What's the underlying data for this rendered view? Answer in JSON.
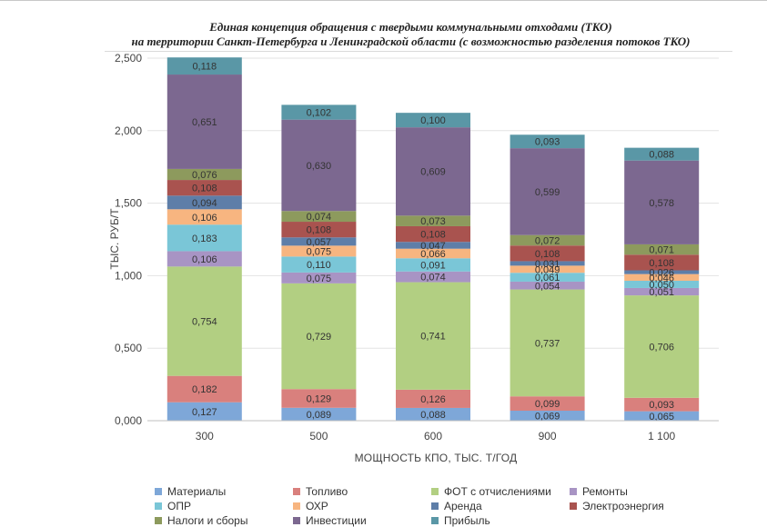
{
  "title_line1": "Единая концепция обращения с твердыми коммунальными отходами (ТКО)",
  "title_line2": "на территории Санкт-Петербурга и Ленинградской области (с возможностью разделения потоков ТКО)",
  "chart_data": {
    "type": "bar",
    "stacked": true,
    "xlabel": "МОЩНОСТЬ КПО, ТЫС. Т/ГОД",
    "ylabel": "ТЫС. РУБ/Т",
    "ylim": [
      0,
      2.5
    ],
    "yticks": [
      "0,000",
      "0,500",
      "1,000",
      "1,500",
      "2,000",
      "2,500"
    ],
    "ytick_values": [
      0,
      0.5,
      1.0,
      1.5,
      2.0,
      2.5
    ],
    "categories": [
      "300",
      "500",
      "600",
      "900",
      "1 100"
    ],
    "legend_position": "bottom",
    "series": [
      {
        "name": "Материалы",
        "color": "#7ea7d8",
        "values": [
          0.127,
          0.089,
          0.088,
          0.069,
          0.065
        ],
        "labels": [
          "0,127",
          "0,089",
          "0,088",
          "0,069",
          "0,065"
        ]
      },
      {
        "name": "Топливо",
        "color": "#d9807d",
        "values": [
          0.182,
          0.129,
          0.126,
          0.099,
          0.093
        ],
        "labels": [
          "0,182",
          "0,129",
          "0,126",
          "0,099",
          "0,093"
        ]
      },
      {
        "name": "ФОТ с отчислениями",
        "color": "#b2cf82",
        "values": [
          0.754,
          0.729,
          0.741,
          0.737,
          0.706
        ],
        "labels": [
          "0,754",
          "0,729",
          "0,741",
          "0,737",
          "0,706"
        ]
      },
      {
        "name": "Ремонты",
        "color": "#a894c4",
        "values": [
          0.106,
          0.075,
          0.074,
          0.054,
          0.051
        ],
        "labels": [
          "0,106",
          "0,075",
          "0,074",
          "0,054",
          "0,051"
        ]
      },
      {
        "name": "ОПР",
        "color": "#7ac6d7",
        "values": [
          0.183,
          0.11,
          0.091,
          0.061,
          0.05
        ],
        "labels": [
          "0,183",
          "0,110",
          "0,091",
          "0,061",
          "0,050"
        ]
      },
      {
        "name": "ОХР",
        "color": "#f7b580",
        "values": [
          0.106,
          0.075,
          0.066,
          0.049,
          0.046
        ],
        "labels": [
          "0,106",
          "0,075",
          "0,066",
          "0,049",
          "0,046"
        ]
      },
      {
        "name": "Аренда",
        "color": "#5e7ea8",
        "values": [
          0.094,
          0.057,
          0.047,
          0.031,
          0.026
        ],
        "labels": [
          "0,094",
          "0,057",
          "0,047",
          "0,031",
          "0,026"
        ]
      },
      {
        "name": "Электроэнергия",
        "color": "#a9534f",
        "values": [
          0.108,
          0.108,
          0.108,
          0.108,
          0.108
        ],
        "labels": [
          "0,108",
          "0,108",
          "0,108",
          "0,108",
          "0,108"
        ]
      },
      {
        "name": "Налоги и сборы",
        "color": "#8d9a5d",
        "values": [
          0.076,
          0.074,
          0.073,
          0.072,
          0.071
        ],
        "labels": [
          "0,076",
          "0,074",
          "0,073",
          "0,072",
          "0,071"
        ]
      },
      {
        "name": "Инвестиции",
        "color": "#7c6890",
        "values": [
          0.651,
          0.63,
          0.609,
          0.599,
          0.578
        ],
        "labels": [
          "0,651",
          "0,630",
          "0,609",
          "0,599",
          "0,578"
        ]
      },
      {
        "name": "Прибыль",
        "color": "#5a97a6",
        "values": [
          0.118,
          0.102,
          0.1,
          0.093,
          0.088
        ],
        "labels": [
          "0,118",
          "0,102",
          "0,100",
          "0,093",
          "0,088"
        ]
      }
    ]
  }
}
